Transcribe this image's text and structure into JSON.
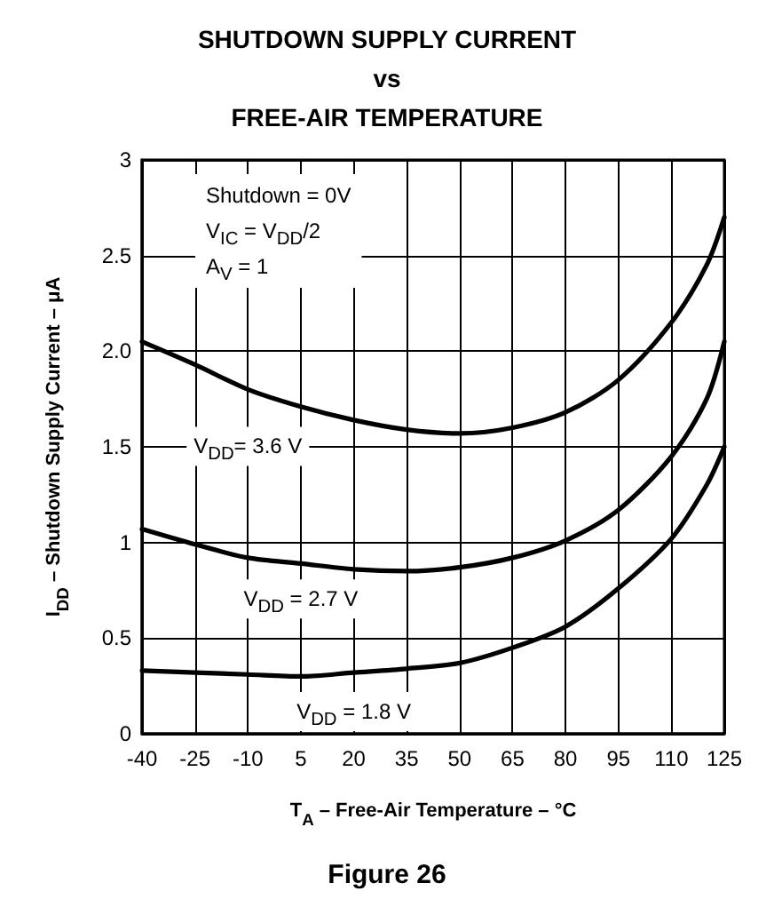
{
  "chart_data": {
    "type": "line",
    "title": "SHUTDOWN SUPPLY CURRENT\nvs\nFREE-AIR TEMPERATURE",
    "xlabel": "T$_{A}$ – Free-Air Temperature – °C",
    "ylabel": "I$_{DD}$ – Shutdown Supply Current – μA",
    "x": [
      -40,
      -25,
      -10,
      5,
      20,
      35,
      50,
      65,
      80,
      95,
      110,
      120,
      125
    ],
    "series": [
      {
        "name": "V$_{DD}$= 3.6 V",
        "color": "#000000",
        "values": [
          2.05,
          1.93,
          1.8,
          1.71,
          1.64,
          1.59,
          1.57,
          1.6,
          1.68,
          1.85,
          2.15,
          2.45,
          2.7
        ]
      },
      {
        "name": "V$_{DD}$ = 2.7 V",
        "color": "#000000",
        "values": [
          1.07,
          0.99,
          0.92,
          0.89,
          0.86,
          0.85,
          0.87,
          0.92,
          1.01,
          1.17,
          1.45,
          1.75,
          2.05
        ]
      },
      {
        "name": "V$_{DD}$ = 1.8 V",
        "color": "#000000",
        "values": [
          0.33,
          0.32,
          0.31,
          0.3,
          0.32,
          0.34,
          0.37,
          0.45,
          0.56,
          0.76,
          1.02,
          1.3,
          1.5
        ]
      }
    ],
    "xlim": [
      -40,
      125
    ],
    "xticks": [
      -40,
      -25,
      -10,
      5,
      20,
      35,
      50,
      65,
      80,
      95,
      110,
      125
    ],
    "ylim": [
      0,
      3
    ],
    "yticks": [
      0,
      0.5,
      1,
      1.5,
      {
        "value": 2,
        "label": "2.0"
      },
      2.5,
      3
    ],
    "grid": true,
    "marker": "none",
    "line_style": "solid",
    "annotations": [
      "Shutdown = 0V",
      "V$_{IC}$ = V$_{DD}$/2",
      "A$_{V}$ = 1",
      "Figure 26"
    ]
  }
}
